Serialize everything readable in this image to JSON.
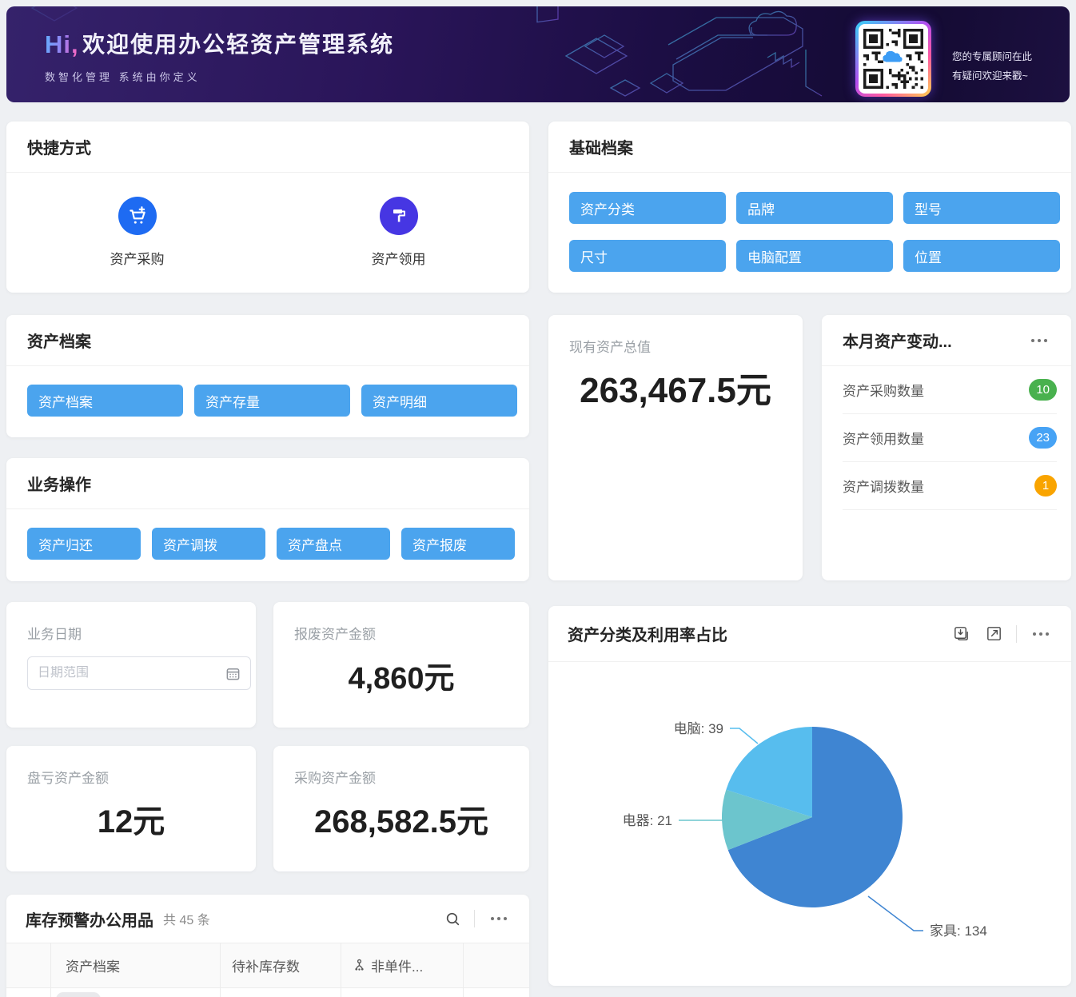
{
  "banner": {
    "greeting": "Hi,",
    "title": "欢迎使用办公轻资产管理系统",
    "subtitle": "数智化管理 系统由你定义",
    "qr_caption_line1": "您的专属顾问在此",
    "qr_caption_line2": "有疑问欢迎来戳~"
  },
  "shortcuts": {
    "title": "快捷方式",
    "items": [
      {
        "label": "资产采购",
        "icon": "cart-plus-icon",
        "color": "#1E6BF2"
      },
      {
        "label": "资产领用",
        "icon": "paint-roller-icon",
        "color": "#4636E3"
      }
    ]
  },
  "base_archives": {
    "title": "基础档案",
    "buttons": [
      "资产分类",
      "品牌",
      "型号",
      "尺寸",
      "电脑配置",
      "位置"
    ]
  },
  "asset_archives": {
    "title": "资产档案",
    "buttons": [
      "资产档案",
      "资产存量",
      "资产明细"
    ]
  },
  "business_ops": {
    "title": "业务操作",
    "buttons": [
      "资产归还",
      "资产调拨",
      "资产盘点",
      "资产报废"
    ]
  },
  "stats": {
    "total": {
      "label": "现有资产总值",
      "value": "263,467.5元"
    },
    "monthly": {
      "title": "本月资产变动...",
      "rows": [
        {
          "label": "资产采购数量",
          "value": "10",
          "color": "#49B14E"
        },
        {
          "label": "资产领用数量",
          "value": "23",
          "color": "#47A3F5"
        },
        {
          "label": "资产调拨数量",
          "value": "1",
          "color": "#F9A400"
        }
      ]
    },
    "scrap": {
      "label": "报废资产金额",
      "value": "4,860元"
    },
    "loss": {
      "label": "盘亏资产金额",
      "value": "12元"
    },
    "purchase": {
      "label": "采购资产金额",
      "value": "268,582.5元"
    }
  },
  "business_date": {
    "label": "业务日期",
    "placeholder": "日期范围"
  },
  "inventory": {
    "title": "库存预警办公用品",
    "count_text": "共 45 条",
    "columns": [
      "资产档案",
      "待补库存数",
      "非单件..."
    ]
  },
  "pie_card": {
    "title": "资产分类及利用率占比"
  },
  "chart_data": {
    "type": "pie",
    "title": "资产分类及利用率占比",
    "series": [
      {
        "name": "家具",
        "value": 134,
        "color": "#3F85D2"
      },
      {
        "name": "电器",
        "value": 21,
        "color": "#6CC5CD"
      },
      {
        "name": "电脑",
        "value": 39,
        "color": "#57BDEE"
      }
    ],
    "total": 194,
    "start_angle": "12-o'clock",
    "direction": "clockwise",
    "label_format": "{name}: {value}",
    "legend": false
  },
  "colors": {
    "primary_button": "#4BA4EE",
    "banner_bg": "#1d0f45",
    "pie_furniture": "#3F85D2",
    "pie_appliance": "#6CC5CD",
    "pie_computer": "#57BDEE"
  },
  "icons": {
    "purchase": "cart-plus-icon",
    "receive": "paint-roller-icon",
    "date": "calendar-icon",
    "search": "search-icon",
    "more": "more-icon",
    "download": "download-icon",
    "expand": "expand-icon",
    "non_single": "branch-icon",
    "qr": "qr-code"
  }
}
